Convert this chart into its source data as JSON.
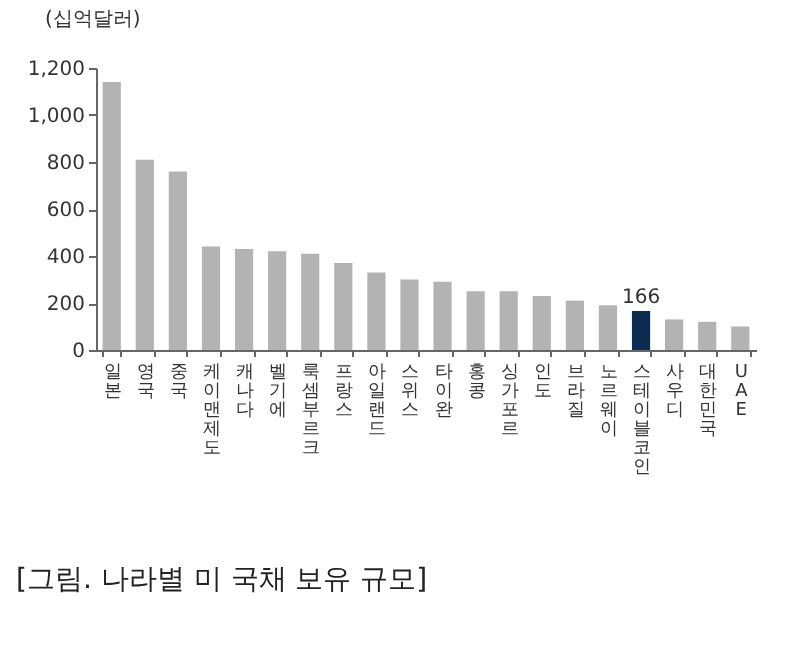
{
  "chart_data": {
    "type": "bar",
    "ylabel": "(십억달러)",
    "categories": [
      "일본",
      "영국",
      "중국",
      "케이맨 제도",
      "캐나다",
      "벨기에",
      "룩셈부르크",
      "프랑스",
      "아일랜드",
      "스위스",
      "타이완",
      "홍콩",
      "싱가포르",
      "인도",
      "브라질",
      "노르웨이",
      "스테이블 코인",
      "사우디",
      "대한민국",
      "UAE"
    ],
    "values": [
      1140,
      810,
      760,
      440,
      430,
      420,
      410,
      370,
      330,
      300,
      290,
      250,
      250,
      230,
      210,
      190,
      166,
      130,
      120,
      100
    ],
    "colors": [
      "#b3b3b3",
      "#b3b3b3",
      "#b3b3b3",
      "#b3b3b3",
      "#b3b3b3",
      "#b3b3b3",
      "#b3b3b3",
      "#b3b3b3",
      "#b3b3b3",
      "#b3b3b3",
      "#b3b3b3",
      "#b3b3b3",
      "#b3b3b3",
      "#b3b3b3",
      "#b3b3b3",
      "#b3b3b3",
      "#0d2b4e",
      "#b3b3b3",
      "#b3b3b3",
      "#b3b3b3"
    ],
    "value_labels": [
      null,
      null,
      null,
      null,
      null,
      null,
      null,
      null,
      null,
      null,
      null,
      null,
      null,
      null,
      null,
      null,
      "166",
      null,
      null,
      null
    ],
    "ylim": [
      0,
      1200
    ],
    "yticks": [
      {
        "value": 0,
        "label": "0"
      },
      {
        "value": 200,
        "label": "200"
      },
      {
        "value": 400,
        "label": "400"
      },
      {
        "value": 600,
        "label": "600"
      },
      {
        "value": 800,
        "label": "800"
      },
      {
        "value": 1000,
        "label": "1,000"
      },
      {
        "value": 1200,
        "label": "1,200"
      }
    ],
    "grid": false,
    "annotations": [
      "[그림. 나라별 미 국채 보유 규모]"
    ]
  }
}
